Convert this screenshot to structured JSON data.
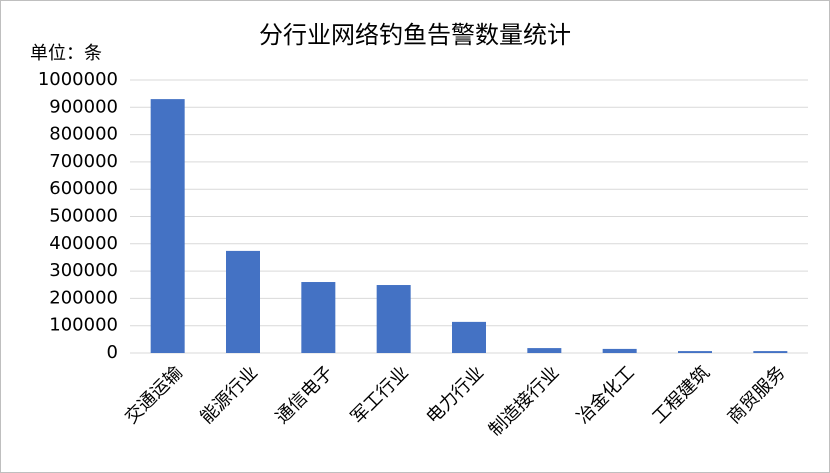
{
  "chart_data": {
    "type": "bar",
    "title": "分行业网络钓鱼告警数量统计",
    "unit_label": "单位：条",
    "categories": [
      "交通运输",
      "能源行业",
      "通信电子",
      "军工行业",
      "电力行业",
      "制造接行业",
      "冶金化工",
      "工程建筑",
      "商贸服务"
    ],
    "values": [
      930000,
      374000,
      260000,
      249000,
      114000,
      18000,
      15000,
      7000,
      7000
    ],
    "color": "#4472c4",
    "ylim": [
      0,
      1000000
    ],
    "yticks": [
      0,
      100000,
      200000,
      300000,
      400000,
      500000,
      600000,
      700000,
      800000,
      900000,
      1000000
    ],
    "grid": true
  }
}
